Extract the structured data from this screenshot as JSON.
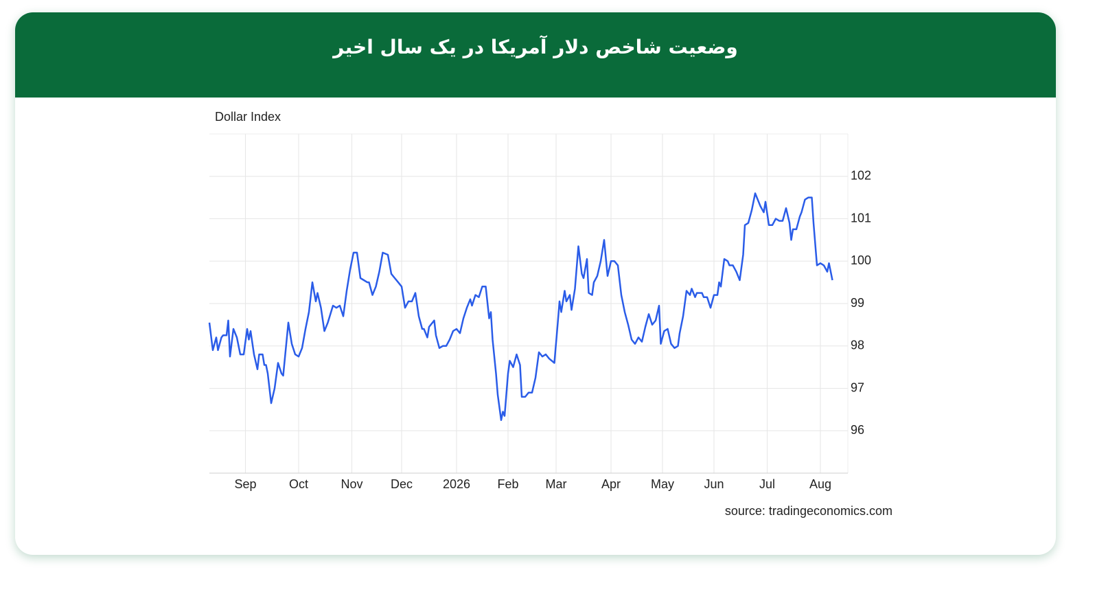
{
  "chart_data": {
    "type": "line",
    "title": "وضعیت شاخص دلار آمریکا در یک سال اخیر",
    "ylabel": "Dollar Index",
    "source": "source: tradingeconomics.com",
    "color": "#2a5ce8",
    "grid": true,
    "xlim": [
      0,
      372
    ],
    "ylim": [
      95,
      103
    ],
    "xticks": [
      {
        "value": 21,
        "label": "Sep"
      },
      {
        "value": 52,
        "label": "Oct"
      },
      {
        "value": 83,
        "label": "Nov"
      },
      {
        "value": 112,
        "label": "Dec"
      },
      {
        "value": 144,
        "label": "2026"
      },
      {
        "value": 174,
        "label": "Feb"
      },
      {
        "value": 202,
        "label": "Mar"
      },
      {
        "value": 234,
        "label": "Apr"
      },
      {
        "value": 264,
        "label": "May"
      },
      {
        "value": 294,
        "label": "Jun"
      },
      {
        "value": 325,
        "label": "Jul"
      },
      {
        "value": 356,
        "label": "Aug"
      }
    ],
    "yticks": [
      96,
      97,
      98,
      99,
      100,
      101,
      102
    ],
    "x": [
      0,
      2,
      4,
      5,
      7,
      8,
      10,
      11,
      12,
      14,
      16,
      18,
      20,
      22,
      23,
      24,
      26,
      28,
      29,
      31,
      32,
      33,
      34,
      36,
      38,
      40,
      42,
      43,
      46,
      48,
      50,
      52,
      54,
      56,
      58,
      60,
      62,
      63,
      65,
      67,
      69,
      72,
      74,
      76,
      78,
      80,
      82,
      84,
      86,
      88,
      90,
      92,
      93,
      95,
      97,
      99,
      101,
      104,
      106,
      108,
      110,
      112,
      114,
      116,
      118,
      120,
      122,
      124,
      125,
      127,
      128,
      131,
      132,
      134,
      136,
      138,
      140,
      142,
      144,
      146,
      148,
      150,
      152,
      153,
      155,
      157,
      159,
      161,
      163,
      164,
      165,
      167,
      168,
      170,
      171,
      172,
      174,
      175,
      177,
      179,
      181,
      182,
      184,
      186,
      188,
      190,
      192,
      194,
      196,
      198,
      201,
      203,
      204,
      205,
      207,
      208,
      210,
      211,
      213,
      215,
      217,
      218,
      220,
      221,
      223,
      224,
      226,
      228,
      230,
      232,
      234,
      236,
      238,
      240,
      242,
      244,
      246,
      248,
      250,
      252,
      254,
      256,
      258,
      260,
      262,
      263,
      265,
      267,
      269,
      271,
      273,
      274,
      276,
      278,
      280,
      281,
      283,
      284,
      287,
      288,
      290,
      292,
      294,
      296,
      297,
      298,
      300,
      302,
      303,
      305,
      307,
      309,
      311,
      312,
      314,
      316,
      318,
      320,
      321,
      323,
      324,
      326,
      328,
      330,
      332,
      334,
      336,
      338,
      339,
      340,
      342,
      344,
      345,
      347,
      349,
      351,
      352,
      354,
      356,
      358,
      360,
      361,
      363
    ],
    "values": [
      98.55,
      97.9,
      98.2,
      97.9,
      98.2,
      98.25,
      98.25,
      98.6,
      97.75,
      98.4,
      98.2,
      97.8,
      97.8,
      98.4,
      98.15,
      98.35,
      97.8,
      97.45,
      97.8,
      97.8,
      97.55,
      97.55,
      97.35,
      96.65,
      97.0,
      97.6,
      97.35,
      97.3,
      98.55,
      98.05,
      97.8,
      97.75,
      97.95,
      98.4,
      98.8,
      99.5,
      99.05,
      99.25,
      98.9,
      98.35,
      98.55,
      98.95,
      98.9,
      98.95,
      98.7,
      99.3,
      99.8,
      100.2,
      100.2,
      99.6,
      99.55,
      99.5,
      99.5,
      99.2,
      99.4,
      99.75,
      100.2,
      100.15,
      99.7,
      99.6,
      99.5,
      99.4,
      98.9,
      99.05,
      99.05,
      99.25,
      98.7,
      98.4,
      98.4,
      98.2,
      98.45,
      98.6,
      98.25,
      97.95,
      98.0,
      98.0,
      98.15,
      98.35,
      98.4,
      98.3,
      98.65,
      98.9,
      99.1,
      98.95,
      99.2,
      99.15,
      99.4,
      99.4,
      98.65,
      98.8,
      98.15,
      97.35,
      96.85,
      96.25,
      96.45,
      96.35,
      97.35,
      97.65,
      97.5,
      97.8,
      97.55,
      96.8,
      96.8,
      96.9,
      96.9,
      97.25,
      97.85,
      97.75,
      97.8,
      97.7,
      97.6,
      98.55,
      99.05,
      98.8,
      99.3,
      99.05,
      99.2,
      98.85,
      99.35,
      100.35,
      99.7,
      99.6,
      100.05,
      99.25,
      99.2,
      99.5,
      99.65,
      100.0,
      100.5,
      99.65,
      100.0,
      100.0,
      99.9,
      99.2,
      98.8,
      98.5,
      98.15,
      98.05,
      98.2,
      98.1,
      98.45,
      98.75,
      98.5,
      98.6,
      98.95,
      98.05,
      98.35,
      98.4,
      98.05,
      97.95,
      98.0,
      98.3,
      98.7,
      99.3,
      99.2,
      99.35,
      99.15,
      99.25,
      99.25,
      99.15,
      99.15,
      98.9,
      99.2,
      99.2,
      99.5,
      99.4,
      100.05,
      100.0,
      99.9,
      99.9,
      99.75,
      99.55,
      100.15,
      100.85,
      100.9,
      101.2,
      101.6,
      101.4,
      101.3,
      101.15,
      101.4,
      100.85,
      100.85,
      101.0,
      100.95,
      100.95,
      101.25,
      100.9,
      100.5,
      100.75,
      100.75,
      101.05,
      101.15,
      101.45,
      101.5,
      101.5,
      100.9,
      99.9,
      99.95,
      99.9,
      99.75,
      99.95,
      99.55
    ]
  }
}
